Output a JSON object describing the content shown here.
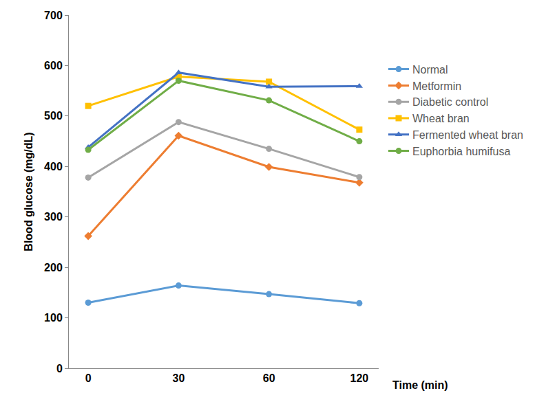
{
  "chart_data": {
    "type": "line",
    "x_label": "Time (min)",
    "y_label": "Blood glucose (mg/dL)",
    "categories": [
      "0",
      "30",
      "60",
      "120"
    ],
    "series": [
      {
        "name": "Normal",
        "color": "#5b9bd5",
        "marker": "circle",
        "values": [
          130,
          164,
          147,
          129
        ]
      },
      {
        "name": "Metformin",
        "color": "#ed7d31",
        "marker": "diamond",
        "values": [
          262,
          461,
          399,
          368
        ]
      },
      {
        "name": "Diabetic control",
        "color": "#a5a5a5",
        "marker": "circle",
        "values": [
          378,
          488,
          435,
          379
        ]
      },
      {
        "name": "Wheat bran",
        "color": "#ffc000",
        "marker": "square",
        "values": [
          520,
          578,
          568,
          473
        ]
      },
      {
        "name": "Fermented wheat bran",
        "color": "#4472c4",
        "marker": "triangle",
        "values": [
          438,
          586,
          558,
          559
        ]
      },
      {
        "name": "Euphorbia humifusa",
        "color": "#70ad47",
        "marker": "circle",
        "values": [
          433,
          570,
          531,
          450
        ]
      }
    ],
    "ylim": [
      0,
      700
    ],
    "yticks": [
      0,
      100,
      200,
      300,
      400,
      500,
      600,
      700
    ],
    "grid": false,
    "legend": "right"
  }
}
